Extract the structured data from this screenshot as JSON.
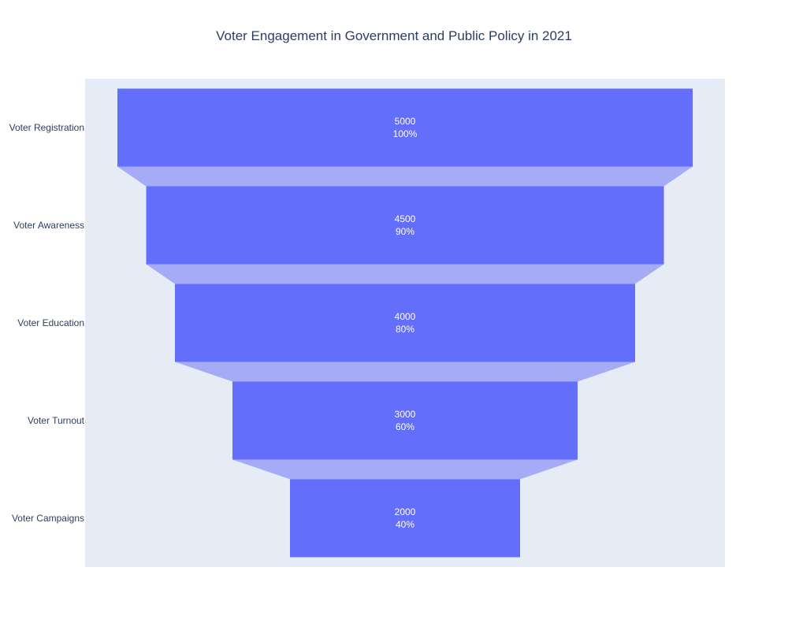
{
  "chart_data": {
    "type": "funnel",
    "title": "Voter Engagement in Government and Public Policy in 2021",
    "categories": [
      "Voter Registration",
      "Voter Awareness",
      "Voter Education",
      "Voter Turnout",
      "Voter Campaigns"
    ],
    "values": [
      5000,
      4500,
      4000,
      3000,
      2000
    ],
    "percent_labels": [
      "100%",
      "90%",
      "80%",
      "60%",
      "40%"
    ],
    "bar_color": "#636efa",
    "connector_color": "#a5abf7",
    "plot_background": "#e5ecf6",
    "text_color": "#2a3f5f",
    "grid": false,
    "legend": "none"
  }
}
